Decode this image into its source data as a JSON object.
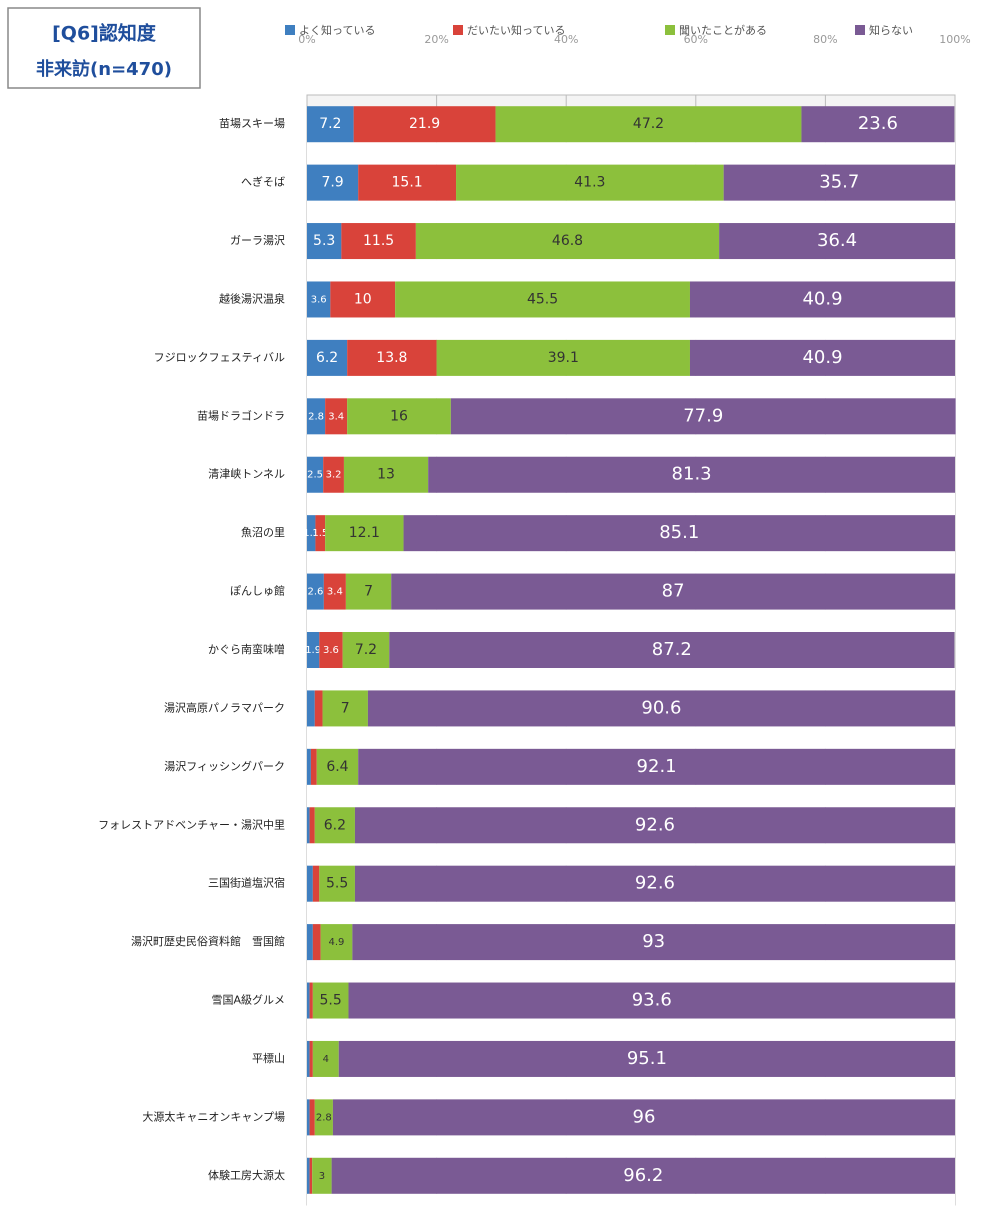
{
  "chart_data": {
    "type": "stacked-bar-horizontal",
    "title": "[Q6]認知度",
    "subtitle": "非来訪(n=470)",
    "categories": [
      "苗場スキー場",
      "へぎそば",
      "ガーラ湯沢",
      "越後湯沢温泉",
      "フジロックフェスティバル",
      "苗場ドラゴンドラ",
      "清津峡トンネル",
      "魚沼の里",
      "ぽんしゅ館",
      "かぐら南蛮味噌",
      "湯沢高原パノラマパーク",
      "湯沢フィッシングパーク",
      "フォレストアドベンチャー・湯沢中里",
      "三国街道塩沢宿",
      "湯沢町歴史民俗資料館　雪国館",
      "雪国A級グルメ",
      "平標山",
      "大源太キャニオンキャンプ場",
      "体験工房大源太"
    ],
    "series": [
      {
        "name": "よく知っている",
        "color": "#3f7fc0",
        "values": [
          7.2,
          7.9,
          5.3,
          3.6,
          6.2,
          2.8,
          2.5,
          1.3,
          2.6,
          1.9,
          1.2,
          0.6,
          0.4,
          0.9,
          0.9,
          0.4,
          0.4,
          0.4,
          0.4
        ]
      },
      {
        "name": "だいたい知っている",
        "color": "#d9433a",
        "values": [
          21.9,
          15.1,
          11.5,
          10.0,
          13.8,
          3.4,
          3.2,
          1.5,
          3.4,
          3.6,
          1.2,
          0.9,
          0.8,
          1.0,
          1.2,
          0.5,
          0.5,
          0.8,
          0.4
        ]
      },
      {
        "name": "聞いたことがある",
        "color": "#8cc03c",
        "values": [
          47.2,
          41.3,
          46.8,
          45.5,
          39.1,
          16.0,
          13.0,
          12.1,
          7.0,
          7.2,
          7.0,
          6.4,
          6.2,
          5.5,
          4.9,
          5.5,
          4.0,
          2.8,
          3.0
        ]
      },
      {
        "name": "知らない",
        "color": "#7a5a94",
        "values": [
          23.6,
          35.7,
          36.4,
          40.9,
          40.9,
          77.9,
          81.3,
          85.1,
          87.0,
          87.2,
          90.6,
          92.1,
          92.6,
          92.6,
          93.0,
          93.6,
          95.1,
          96.0,
          96.2
        ]
      }
    ],
    "xlim": [
      0,
      100
    ],
    "xticks": [
      {
        "value": 0,
        "label": "0%"
      },
      {
        "value": 20,
        "label": "20%"
      },
      {
        "value": 40,
        "label": "40%"
      },
      {
        "value": 60,
        "label": "60%"
      },
      {
        "value": 80,
        "label": "80%"
      },
      {
        "value": 100,
        "label": "100%"
      }
    ],
    "grid": true,
    "legend": "top"
  }
}
